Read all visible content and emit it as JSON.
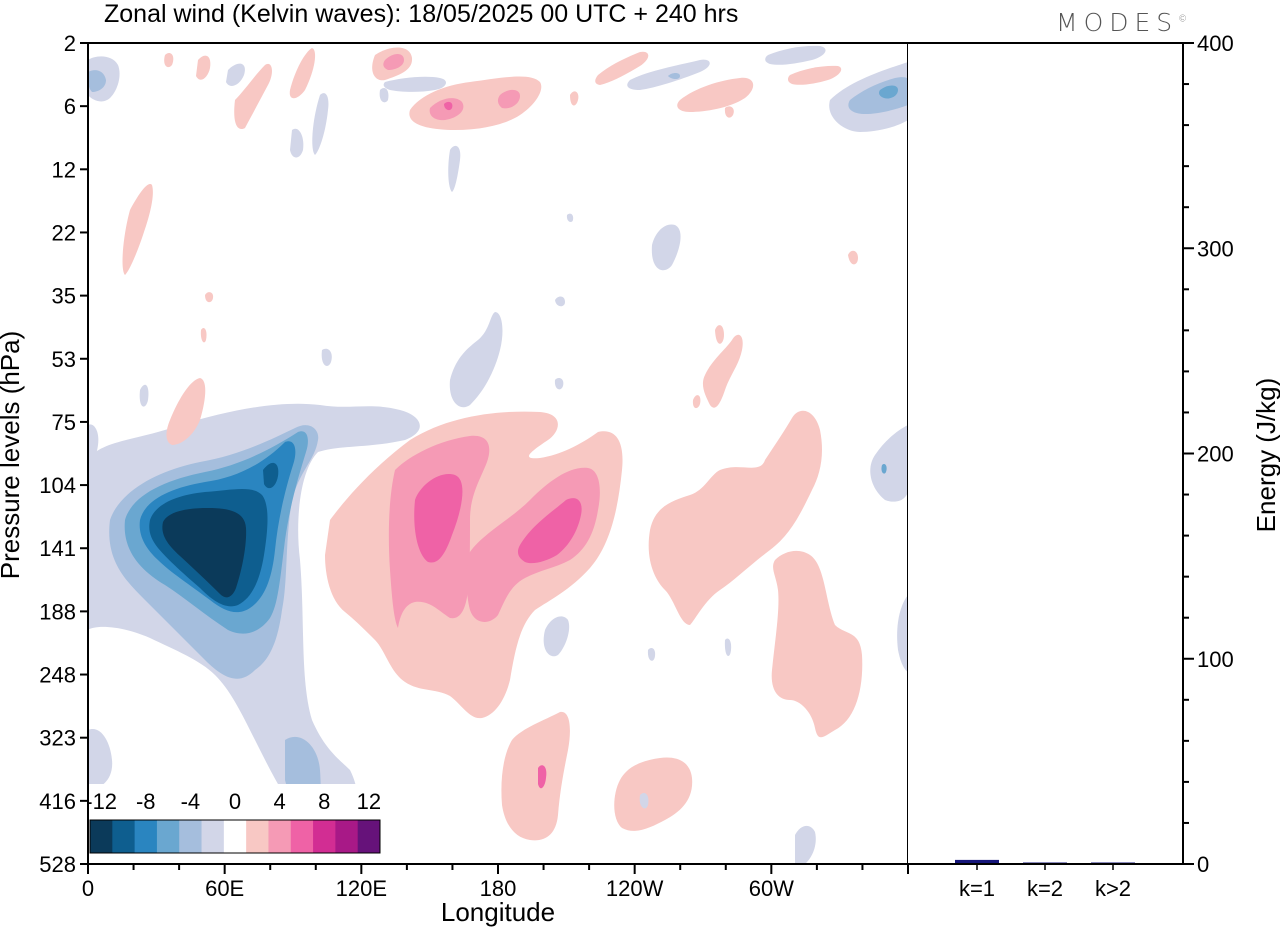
{
  "header": {
    "title": "Zonal wind (Kelvin waves):  18/05/2025  00 UTC  + 240 hrs",
    "logo": "MODES",
    "logo_mark": "©"
  },
  "chart_data": [
    {
      "type": "heatmap",
      "title": "Zonal wind (Kelvin waves):  18/05/2025  00 UTC  + 240 hrs",
      "xlabel": "Longitude",
      "ylabel": "Pressure levels (hPa)",
      "x_ticks": [
        "0",
        "60E",
        "120E",
        "180",
        "120W",
        "60W"
      ],
      "x_tick_values": [
        0,
        60,
        120,
        180,
        240,
        300
      ],
      "xlim": [
        0,
        360
      ],
      "y_ticks": [
        "2",
        "6",
        "12",
        "22",
        "35",
        "53",
        "75",
        "104",
        "141",
        "188",
        "248",
        "323",
        "416",
        "528"
      ],
      "y_axis_inverted": true,
      "colorbar": {
        "labels": [
          "-12",
          "-8",
          "-4",
          "0",
          "4",
          "8",
          "12"
        ],
        "bounds": [
          -16,
          -14,
          -12,
          -10,
          -8,
          -6,
          -4,
          -2,
          2,
          4,
          6,
          8,
          10,
          12,
          14
        ],
        "colors": [
          "#0b3a5a",
          "#0e5e8f",
          "#2a85c0",
          "#6aa7d0",
          "#a5bedd",
          "#d2d6e8",
          "#ffffff",
          "#f8c8c4",
          "#f59ab5",
          "#ef62a6",
          "#d22d93",
          "#a81987",
          "#66127a"
        ]
      },
      "features": [
        {
          "lon": 58,
          "level": 141,
          "value": -16
        },
        {
          "lon": 78,
          "level": 113,
          "value": -9
        },
        {
          "lon": 100,
          "level": 248,
          "value": -4
        },
        {
          "lon": 155,
          "level": 124,
          "value": 8
        },
        {
          "lon": 208,
          "level": 120,
          "value": 6
        },
        {
          "lon": 183,
          "level": 160,
          "value": 5
        },
        {
          "lon": 272,
          "level": 104,
          "value": 3
        },
        {
          "lon": 300,
          "level": 270,
          "value": 3
        },
        {
          "lon": 200,
          "level": 400,
          "value": 3
        },
        {
          "lon": 235,
          "level": 410,
          "value": 3
        },
        {
          "lon": 160,
          "level": 6,
          "value": 5
        },
        {
          "lon": 190,
          "level": 5,
          "value": 3
        },
        {
          "lon": 345,
          "level": 5,
          "value": -5
        },
        {
          "lon": 5,
          "level": 4,
          "value": -4
        }
      ]
    },
    {
      "type": "bar",
      "categories": [
        "k=1",
        "k=2",
        "k>2"
      ],
      "values": [
        2,
        0.5,
        0.5
      ],
      "ylabel": "Energy (J/kg)",
      "ylim": [
        0,
        400
      ],
      "y_ticks": [
        0,
        100,
        200,
        300,
        400
      ],
      "bar_color": "#16167a"
    }
  ]
}
